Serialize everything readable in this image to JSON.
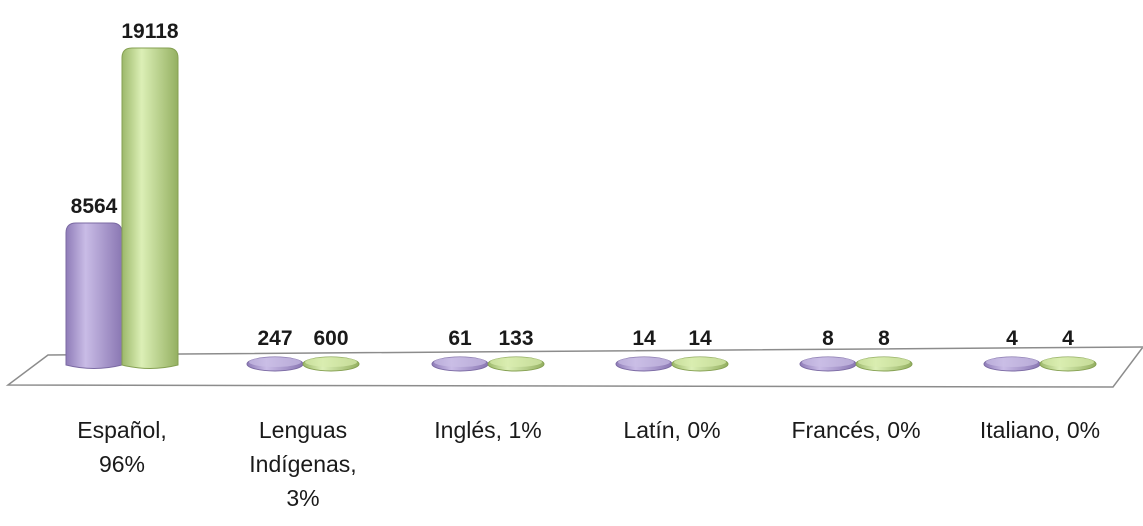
{
  "chart_data": {
    "type": "bar",
    "categories": [
      [
        "Español,",
        "96%"
      ],
      [
        "Lenguas",
        "Indígenas,",
        "3%"
      ],
      [
        "Inglés, 1%"
      ],
      [
        "Latín, 0%"
      ],
      [
        "Francés, 0%"
      ],
      [
        "Italiano, 0%"
      ]
    ],
    "series": [
      {
        "values": [
          8564,
          247,
          61,
          14,
          8,
          4
        ],
        "labels": [
          "8564",
          "247",
          "61",
          "14",
          "8",
          "4"
        ],
        "color": "#b3a2d6"
      },
      {
        "values": [
          19118,
          600,
          133,
          14,
          8,
          4
        ],
        "labels": [
          "19118",
          "600",
          "133",
          "14",
          "8",
          "4"
        ],
        "color": "#c6df94"
      }
    ],
    "title": "",
    "xlabel": "",
    "ylabel": "",
    "ylim": [
      0,
      19118
    ],
    "grid": false,
    "legend": "none",
    "style": "3d-cylinder"
  }
}
